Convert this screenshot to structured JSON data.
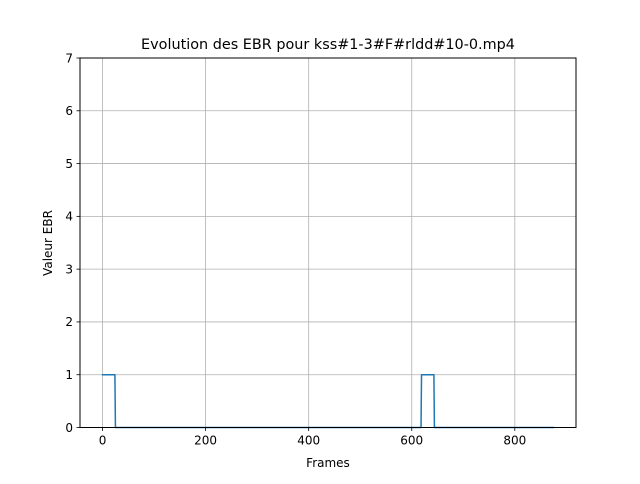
{
  "chart_data": {
    "type": "line",
    "title": "Evolution des EBR pour kss#1-3#F#rldd#10-0.mp4",
    "xlabel": "Frames",
    "ylabel": "Valeur EBR",
    "xlim": [
      -43.75,
      918.75
    ],
    "ylim": [
      0,
      7
    ],
    "xticks": [
      0,
      200,
      400,
      600,
      800
    ],
    "yticks": [
      0,
      1,
      2,
      3,
      4,
      5,
      6,
      7
    ],
    "grid": true,
    "line_color": "#1f77b4",
    "series": [
      {
        "x": [
          0,
          24,
          25,
          618,
          619,
          643,
          644,
          875
        ],
        "y": [
          1,
          1,
          0,
          0,
          1,
          1,
          0,
          0
        ]
      }
    ]
  }
}
